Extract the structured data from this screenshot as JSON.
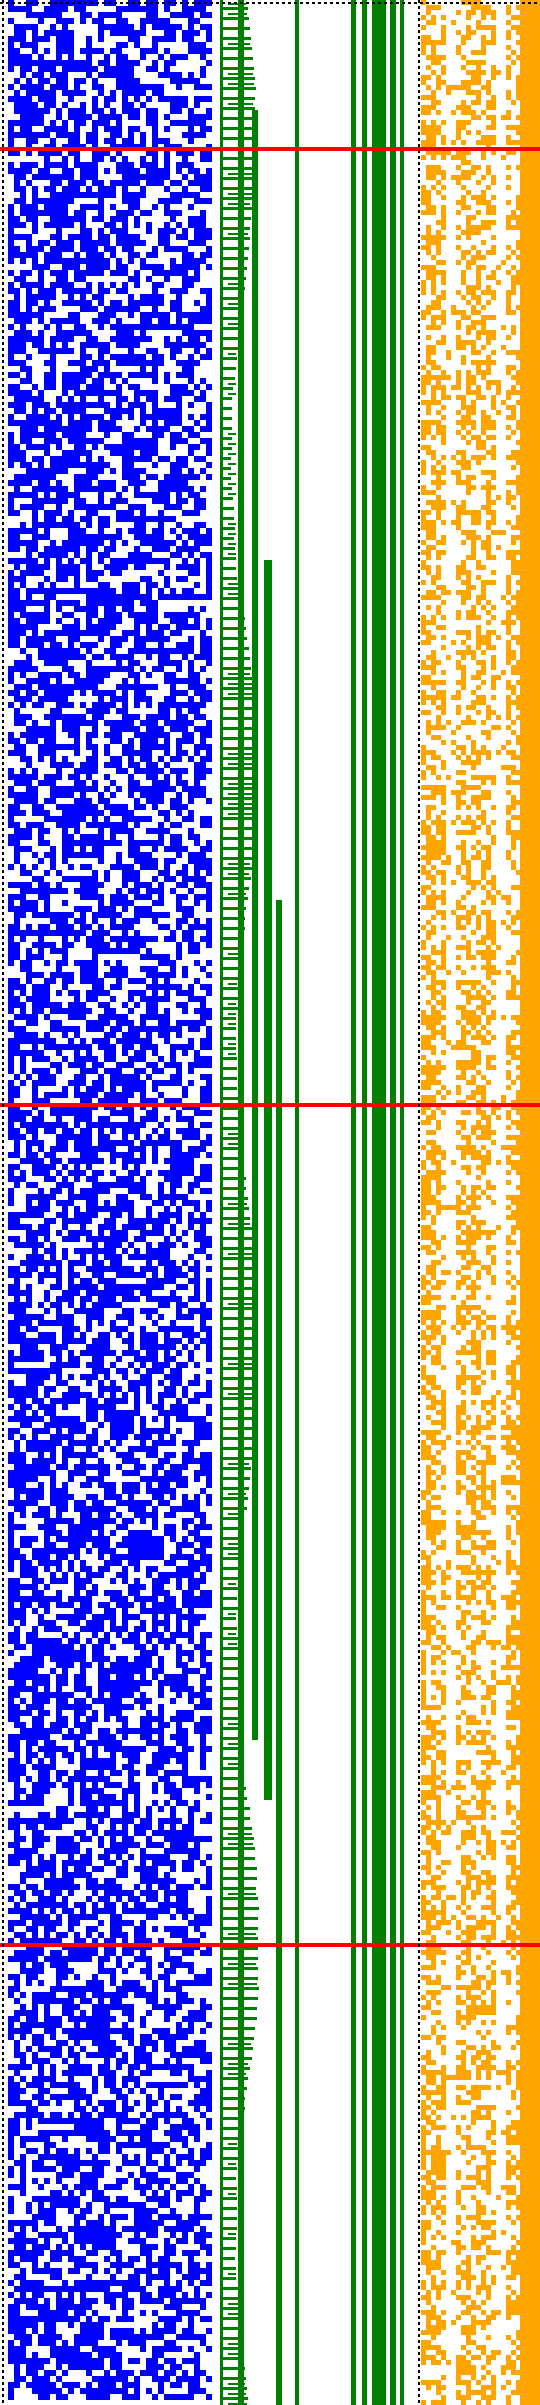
{
  "image": {
    "description": "",
    "colors": {
      "background": "#ffffff",
      "blue": "#0000ff",
      "green": "#008000",
      "orange": "#ffa500",
      "red": "#ff0000",
      "dotted": "#000000"
    },
    "regions": [
      {
        "name": "blue-noise-panel"
      },
      {
        "name": "green-staircase-panel"
      },
      {
        "name": "green-bars-panel"
      },
      {
        "name": "orange-noise-panel"
      }
    ],
    "markers": {
      "red_lines_count": 3
    }
  }
}
